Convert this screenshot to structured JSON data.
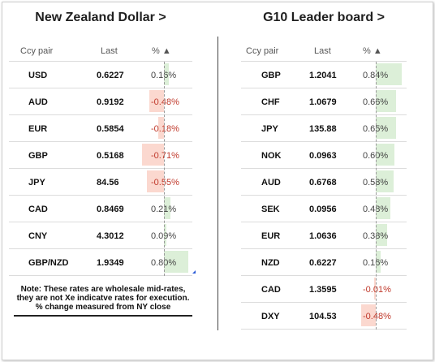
{
  "left": {
    "title": "New Zealand Dollar >",
    "headers": {
      "pair": "Ccy pair",
      "last": "Last",
      "pct": "% ▲"
    },
    "rows": [
      {
        "pair": "USD",
        "last": "0.6227",
        "pct": "0.16%",
        "value": 0.16
      },
      {
        "pair": "AUD",
        "last": "0.9192",
        "pct": "-0.48%",
        "value": -0.48
      },
      {
        "pair": "EUR",
        "last": "0.5854",
        "pct": "-0.18%",
        "value": -0.18
      },
      {
        "pair": "GBP",
        "last": "0.5168",
        "pct": "-0.71%",
        "value": -0.71
      },
      {
        "pair": "JPY",
        "last": "84.56",
        "pct": "-0.55%",
        "value": -0.55
      },
      {
        "pair": "CAD",
        "last": "0.8469",
        "pct": "0.21%",
        "value": 0.21
      },
      {
        "pair": "CNY",
        "last": "4.3012",
        "pct": "0.09%",
        "value": 0.09
      },
      {
        "pair": "GBP/NZD",
        "last": "1.9349",
        "pct": "0.80%",
        "value": 0.8
      }
    ],
    "note": "Note: These rates are wholesale mid-rates, they are not Xe indicatve rates for execution. % change measured from NY close"
  },
  "right": {
    "title": "G10 Leader board >",
    "headers": {
      "pair": "Ccy pair",
      "last": "Last",
      "pct": "% ▲"
    },
    "rows": [
      {
        "pair": "GBP",
        "last": "1.2041",
        "pct": "0.84%",
        "value": 0.84
      },
      {
        "pair": "CHF",
        "last": "1.0679",
        "pct": "0.66%",
        "value": 0.66
      },
      {
        "pair": "JPY",
        "last": "135.88",
        "pct": "0.65%",
        "value": 0.65
      },
      {
        "pair": "NOK",
        "last": "0.0963",
        "pct": "0.60%",
        "value": 0.6
      },
      {
        "pair": "AUD",
        "last": "0.6768",
        "pct": "0.58%",
        "value": 0.58
      },
      {
        "pair": "SEK",
        "last": "0.0956",
        "pct": "0.48%",
        "value": 0.48
      },
      {
        "pair": "EUR",
        "last": "1.0636",
        "pct": "0.38%",
        "value": 0.38
      },
      {
        "pair": "NZD",
        "last": "0.6227",
        "pct": "0.16%",
        "value": 0.16
      },
      {
        "pair": "CAD",
        "last": "1.3595",
        "pct": "-0.01%",
        "value": -0.01
      },
      {
        "pair": "DXY",
        "last": "104.53",
        "pct": "-0.48%",
        "value": -0.48
      }
    ]
  },
  "colors": {
    "positive_bar": "#dcefd8",
    "negative_bar": "#fbd8cf",
    "negative_text": "#c0392b"
  }
}
